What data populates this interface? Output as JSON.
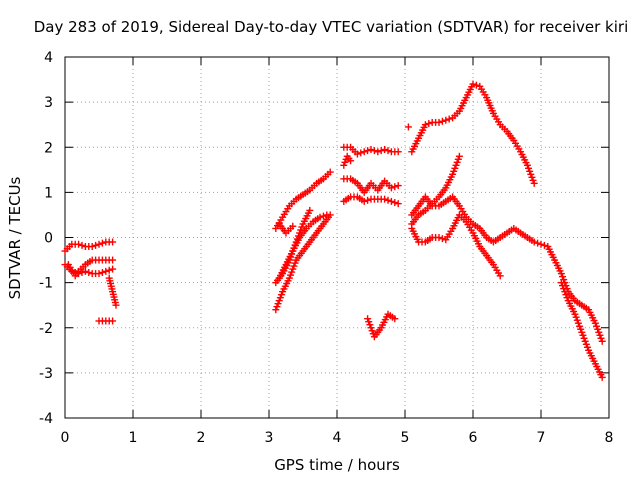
{
  "chart_data": {
    "type": "scatter",
    "title": "Day 283 of 2019, Sidereal Day-to-day VTEC variation (SDTVAR) for receiver kiri",
    "xlabel": "GPS time / hours",
    "ylabel": "SDTVAR / TECUs",
    "xlim": [
      0,
      8
    ],
    "ylim": [
      -4,
      4
    ],
    "x_ticks": [
      "0",
      "1",
      "2",
      "3",
      "4",
      "5",
      "6",
      "7",
      "8"
    ],
    "y_ticks": [
      "4",
      "3",
      "2",
      "1",
      "0",
      "-1",
      "-2",
      "-3",
      "-4"
    ],
    "grid": true,
    "marker": "plus",
    "series": [
      {
        "color": "#ff0000",
        "tracks": [
          {
            "x": [
              0.0,
              0.1,
              0.2,
              0.3,
              0.4,
              0.5,
              0.6,
              0.7
            ],
            "y": [
              -0.3,
              -0.15,
              -0.15,
              -0.2,
              -0.2,
              -0.15,
              -0.1,
              -0.1
            ]
          },
          {
            "x": [
              0.0,
              0.1,
              0.2,
              0.3,
              0.4,
              0.5,
              0.6,
              0.7
            ],
            "y": [
              -0.6,
              -0.75,
              -0.8,
              -0.75,
              -0.8,
              -0.8,
              -0.75,
              -0.7
            ]
          },
          {
            "x": [
              0.05,
              0.15,
              0.2,
              0.3,
              0.4,
              0.5,
              0.6,
              0.7
            ],
            "y": [
              -0.6,
              -0.85,
              -0.75,
              -0.6,
              -0.5,
              -0.5,
              -0.5,
              -0.5
            ]
          },
          {
            "x": [
              0.65,
              0.7,
              0.75
            ],
            "y": [
              -0.9,
              -1.2,
              -1.5
            ]
          },
          {
            "x": [
              0.5,
              0.6,
              0.7
            ],
            "y": [
              -1.85,
              -1.85,
              -1.85
            ]
          },
          {
            "x": [
              3.1,
              3.2,
              3.3,
              3.4,
              3.5,
              3.6,
              3.7,
              3.8,
              3.9
            ],
            "y": [
              -1.6,
              -1.2,
              -0.9,
              -0.5,
              -0.3,
              -0.1,
              0.1,
              0.3,
              0.5
            ]
          },
          {
            "x": [
              3.15,
              3.25,
              3.35,
              3.45,
              3.55,
              3.65,
              3.75,
              3.85
            ],
            "y": [
              -0.9,
              -0.6,
              -0.3,
              0.0,
              0.2,
              0.35,
              0.45,
              0.5
            ]
          },
          {
            "x": [
              3.1,
              3.2,
              3.3,
              3.4,
              3.5,
              3.6
            ],
            "y": [
              -1.0,
              -0.8,
              -0.5,
              -0.1,
              0.3,
              0.6
            ]
          },
          {
            "x": [
              3.1,
              3.2,
              3.3,
              3.4,
              3.5,
              3.6,
              3.7,
              3.8,
              3.9
            ],
            "y": [
              0.2,
              0.45,
              0.7,
              0.85,
              0.95,
              1.05,
              1.2,
              1.3,
              1.45
            ]
          },
          {
            "x": [
              3.15,
              3.25,
              3.35
            ],
            "y": [
              0.3,
              0.1,
              0.25
            ]
          },
          {
            "x": [
              4.1,
              4.2,
              4.3,
              4.4,
              4.5,
              4.6,
              4.7,
              4.8,
              4.9
            ],
            "y": [
              2.0,
              2.0,
              1.85,
              1.9,
              1.95,
              1.9,
              1.95,
              1.9,
              1.9
            ]
          },
          {
            "x": [
              4.1,
              4.2,
              4.3,
              4.4,
              4.5,
              4.6,
              4.7,
              4.8,
              4.9
            ],
            "y": [
              1.3,
              1.3,
              1.2,
              1.0,
              1.2,
              1.05,
              1.25,
              1.1,
              1.15
            ]
          },
          {
            "x": [
              4.1,
              4.2,
              4.3,
              4.4,
              4.5,
              4.6,
              4.7,
              4.8,
              4.9
            ],
            "y": [
              0.8,
              0.9,
              0.9,
              0.8,
              0.85,
              0.85,
              0.85,
              0.8,
              0.75
            ]
          },
          {
            "x": [
              4.45,
              4.55,
              4.65,
              4.75,
              4.85
            ],
            "y": [
              -1.8,
              -2.2,
              -2.0,
              -1.7,
              -1.8
            ]
          },
          {
            "x": [
              4.1,
              4.15,
              4.2
            ],
            "y": [
              1.6,
              1.8,
              1.7
            ]
          },
          {
            "x": [
              5.1,
              5.2,
              5.3,
              5.4,
              5.5,
              5.6,
              5.7,
              5.8,
              5.9,
              6.0,
              6.1,
              6.2,
              6.3,
              6.4,
              6.5,
              6.6,
              6.7,
              6.8,
              6.9
            ],
            "y": [
              1.9,
              2.2,
              2.5,
              2.55,
              2.55,
              2.6,
              2.65,
              2.8,
              3.1,
              3.4,
              3.35,
              3.1,
              2.75,
              2.5,
              2.35,
              2.15,
              1.9,
              1.6,
              1.2
            ]
          },
          {
            "x": [
              5.05
            ],
            "y": [
              2.45
            ]
          },
          {
            "x": [
              5.1,
              5.2,
              5.3,
              5.4,
              5.5,
              5.6,
              5.7,
              5.8,
              5.9,
              6.0,
              6.1,
              6.2,
              6.3,
              6.4,
              6.5,
              6.6,
              6.7,
              6.8,
              6.9,
              7.0,
              7.1,
              7.2,
              7.3,
              7.4,
              7.5,
              7.6,
              7.7,
              7.8,
              7.9
            ],
            "y": [
              0.5,
              0.7,
              0.9,
              0.7,
              0.7,
              0.8,
              0.9,
              0.7,
              0.45,
              0.3,
              0.2,
              0.0,
              -0.1,
              0.0,
              0.1,
              0.2,
              0.1,
              0.0,
              -0.1,
              -0.15,
              -0.2,
              -0.5,
              -0.8,
              -1.2,
              -1.4,
              -1.5,
              -1.6,
              -1.9,
              -2.3
            ]
          },
          {
            "x": [
              5.1,
              5.2,
              5.3,
              5.4,
              5.5,
              5.6,
              5.7,
              5.8
            ],
            "y": [
              0.3,
              0.5,
              0.6,
              0.75,
              0.9,
              1.1,
              1.4,
              1.8
            ]
          },
          {
            "x": [
              5.1,
              5.2,
              5.3,
              5.4,
              5.5,
              5.6,
              5.7,
              5.8,
              5.9,
              6.0,
              6.1,
              6.2,
              6.3,
              6.4
            ],
            "y": [
              0.2,
              -0.1,
              -0.1,
              0.0,
              0.0,
              -0.05,
              0.2,
              0.5,
              0.35,
              0.1,
              -0.2,
              -0.4,
              -0.6,
              -0.85
            ]
          },
          {
            "x": [
              7.3,
              7.4,
              7.5,
              7.6,
              7.7,
              7.8,
              7.9
            ],
            "y": [
              -1.0,
              -1.4,
              -1.7,
              -2.1,
              -2.5,
              -2.8,
              -3.1
            ]
          }
        ]
      }
    ]
  }
}
